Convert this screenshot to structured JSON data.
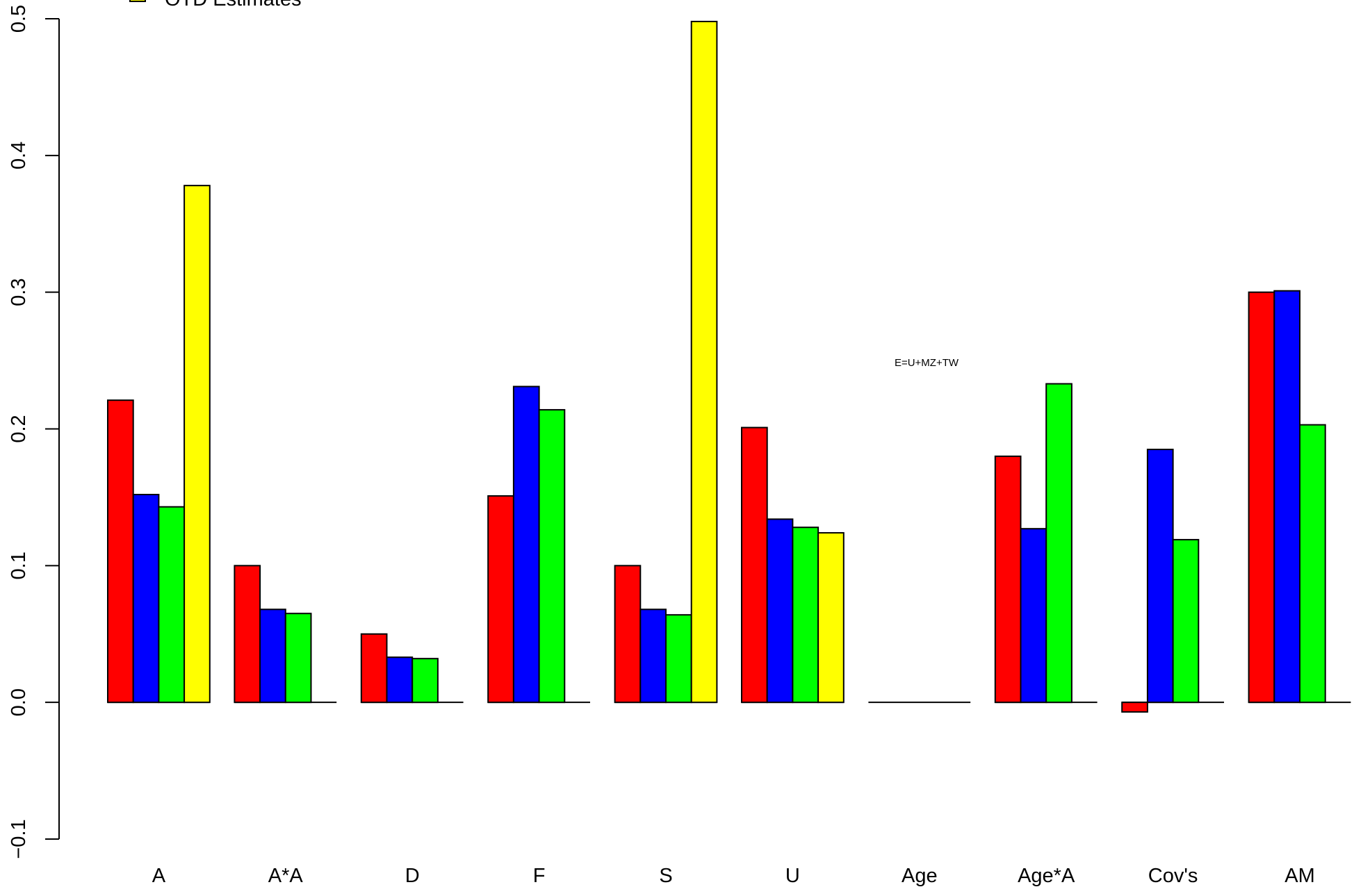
{
  "chart_data": {
    "type": "bar",
    "title": "",
    "xlabel": "",
    "ylabel": "",
    "ylim": [
      -0.1,
      0.5
    ],
    "yticks": [
      -0.1,
      0.0,
      0.1,
      0.2,
      0.3,
      0.4,
      0.5
    ],
    "ytick_labels": [
      "−0.1",
      "0.0",
      "0.1",
      "0.2",
      "0.3",
      "0.4",
      "0.5"
    ],
    "grid": false,
    "legend": {
      "placement": "top-left",
      "entries": [
        {
          "label": "OTD Estimates",
          "color": "#ffff00"
        }
      ]
    },
    "annotation": "E=U+MZ+TW",
    "categories": [
      "A",
      "A*A",
      "D",
      "F",
      "S",
      "U",
      "Age",
      "Age*A",
      "Cov's",
      "AM"
    ],
    "series": [
      {
        "color": "#ff0000",
        "values": [
          0.221,
          0.1,
          0.05,
          0.151,
          0.1,
          0.201,
          0.0,
          0.18,
          -0.007,
          0.3
        ]
      },
      {
        "color": "#0000ff",
        "values": [
          0.152,
          0.068,
          0.033,
          0.231,
          0.068,
          0.134,
          0.0,
          0.127,
          0.185,
          0.301
        ]
      },
      {
        "color": "#00ff00",
        "values": [
          0.143,
          0.065,
          0.032,
          0.214,
          0.064,
          0.128,
          0.0,
          0.233,
          0.119,
          0.203
        ]
      },
      {
        "name": "OTD Estimates",
        "color": "#ffff00",
        "values": [
          0.378,
          null,
          null,
          null,
          0.498,
          0.124,
          null,
          null,
          null,
          null
        ]
      }
    ]
  }
}
